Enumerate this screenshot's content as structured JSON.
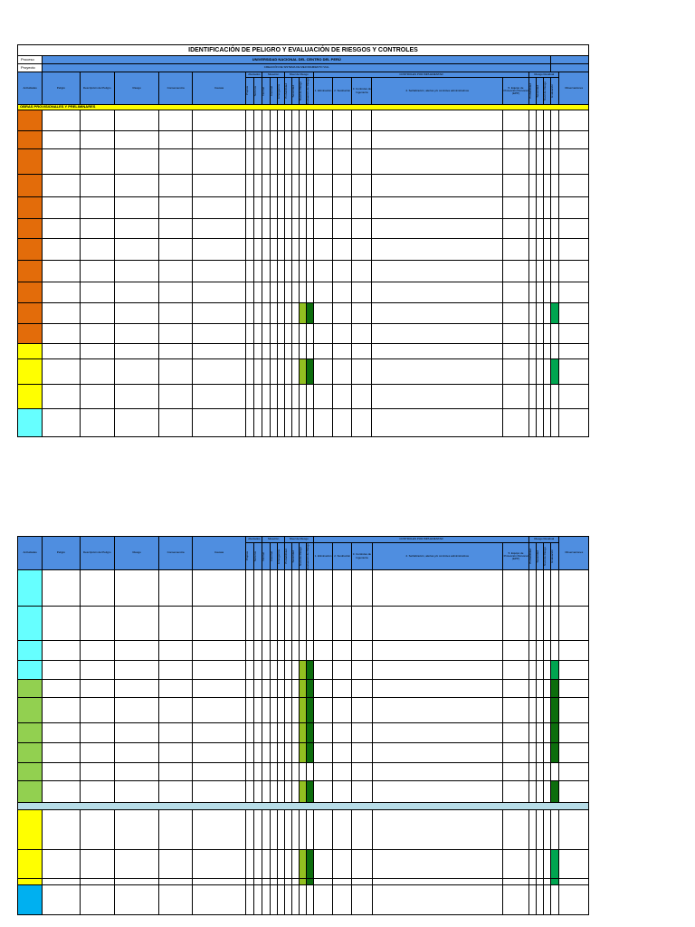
{
  "doc": {
    "title": "IDENTIFICACIÓN DE PELIGRO Y EVALUACIÓN DE RIESGOS Y CONTROLES",
    "proceso_label": "Proceso",
    "proyecto_label": "Proyecto",
    "university": "UNIVERSIDAD NACIONAL DEL CENTRO DEL PERÚ",
    "project_name": "CREACIÓN DE SISTEMA DE MEJORAMIENTO VIAL"
  },
  "headers": {
    "actividades": "Actividades",
    "peligro": "Peligro",
    "descripcion": "Descripción del Peligro",
    "riesgo": "Riesgo",
    "consecuencia": "Consecuencia",
    "causas": "Causas",
    "afectados": "Afectados",
    "exposicion": "Situación",
    "nivel_riesgo": "Nivel de Riesgo",
    "controles": "CONTROLES POR IMPLEMENTAR",
    "riesgo_residual": "Riesgo Residual",
    "observaciones": "Observaciones",
    "sub": {
      "a1": "Propios",
      "a2": "Terceros",
      "s1": "Normal",
      "s2": "Anormal",
      "s3": "Emergencia",
      "n1": "Probabilidad",
      "n2": "Severidad",
      "n3": "Nivel de Riesgo",
      "n4": "Evaluación de Riesgo",
      "c1": "1. Eliminación",
      "c2": "2. Sustitución",
      "c3": "3. Controles de Ingeniería",
      "c4": "4. Señalización, alertas y/o controles administrativos",
      "c5": "5. Equipo de Protección Personal (EPP)",
      "rr1": "Probabilidad",
      "rr2": "Severidad",
      "rr3": "Nivel de Riesgo",
      "rr4": "Evaluación"
    }
  },
  "stage1": "OBRAS PROVISIONALES Y PRELIMINARES",
  "sheet1_rows": [
    {
      "color": "orange",
      "rs": 0,
      "flag": false
    },
    {
      "color": "orange",
      "rs": 0,
      "flag": false
    },
    {
      "color": "orange",
      "rs": 0,
      "flag": false
    },
    {
      "color": "orange",
      "rs": 0,
      "flag": false
    },
    {
      "color": "orange",
      "rs": 0,
      "flag": false
    },
    {
      "color": "orange",
      "rs": 0,
      "flag": false
    },
    {
      "color": "orange",
      "rs": 0,
      "flag": false
    },
    {
      "color": "orange",
      "rs": 0,
      "flag": false
    },
    {
      "color": "orange",
      "rs": 0,
      "flag": false
    },
    {
      "color": "orange",
      "rs": 0,
      "flag": true
    },
    {
      "color": "orange",
      "rs": 0,
      "flag": false
    },
    {
      "color": "yellow",
      "rs": 0,
      "flag": false
    },
    {
      "color": "yellow",
      "rs": 0,
      "flag": true
    },
    {
      "color": "yellow",
      "rs": 0,
      "flag": false
    },
    {
      "color": "cyan",
      "rs": 0,
      "flag": false
    }
  ],
  "sheet2_rows": [
    {
      "color": "cyan",
      "flag": false
    },
    {
      "color": "cyan",
      "flag": false
    },
    {
      "color": "cyan",
      "flag": false
    },
    {
      "color": "cyan",
      "flag": true
    },
    {
      "color": "green",
      "flag": true
    },
    {
      "color": "green",
      "flag": true
    },
    {
      "color": "green",
      "flag": true
    },
    {
      "color": "green",
      "flag": true
    },
    {
      "color": "green",
      "flag": false
    },
    {
      "color": "green",
      "flag": true
    },
    {
      "color": "yellow",
      "flag": false
    },
    {
      "color": "yellow",
      "flag": true
    },
    {
      "color": "yellow",
      "flag": true
    },
    {
      "color": "blue",
      "flag": false
    }
  ]
}
